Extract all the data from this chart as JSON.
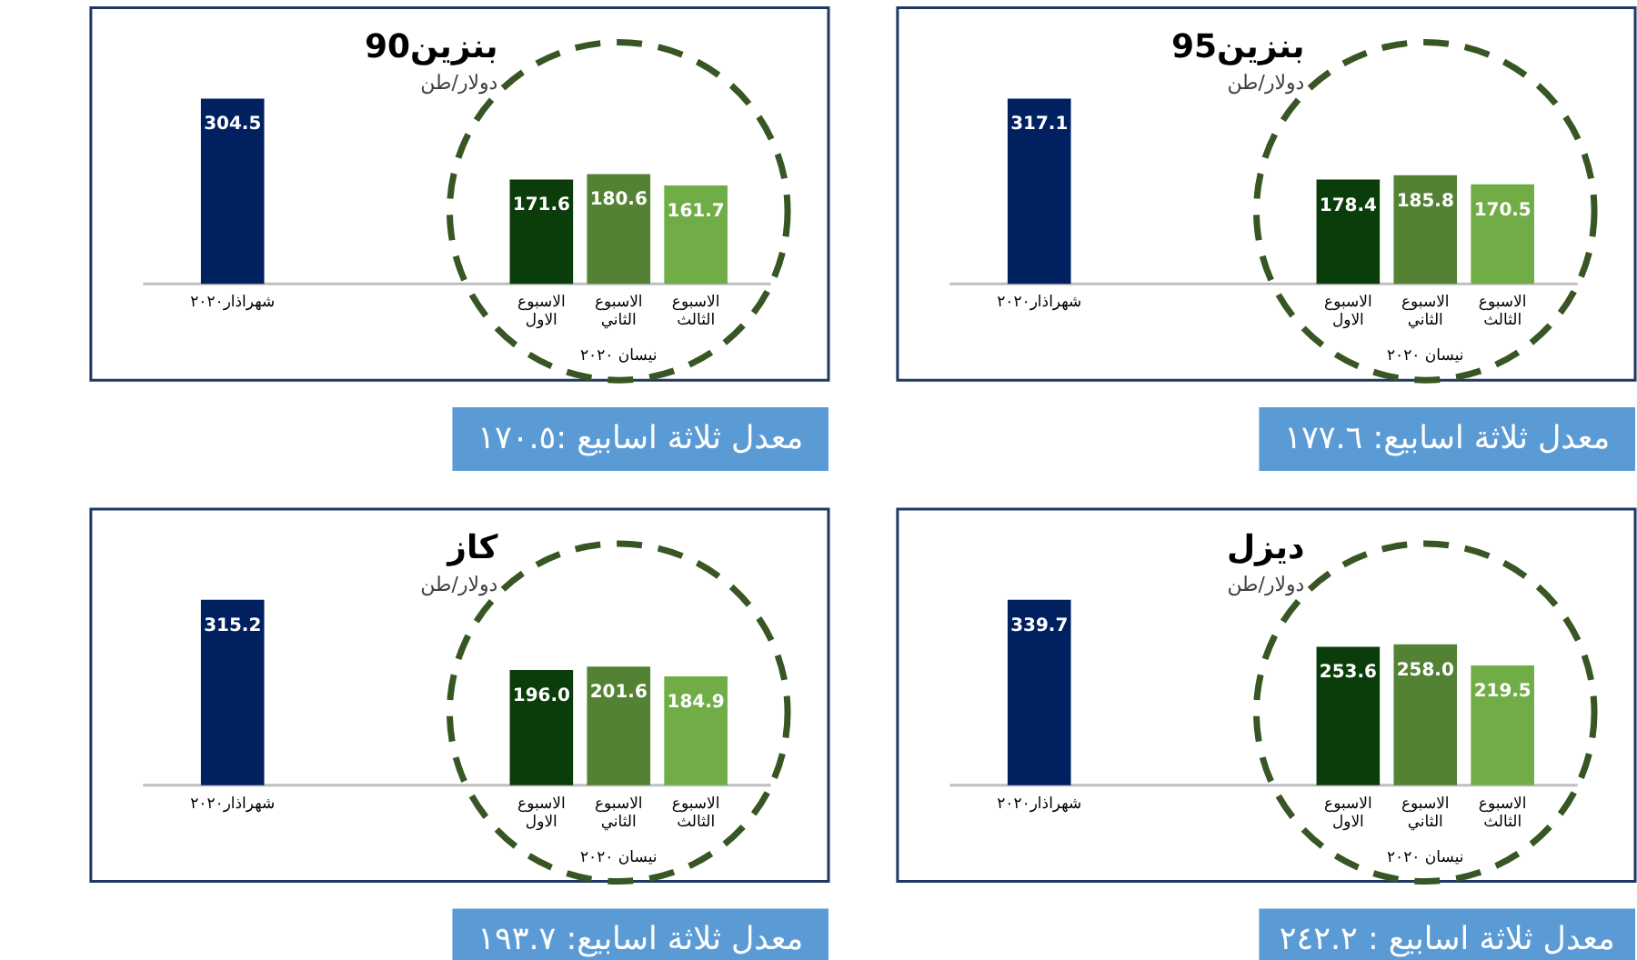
{
  "chart_data": [
    {
      "type": "bar",
      "title": "بنزين90",
      "subtitle": "دولار/طن",
      "categories": [
        "شهراذار٢٠٢٠",
        null,
        null,
        null,
        "الاسبوع الاول",
        "الاسبوع الثاني",
        "الاسبوع الثالث"
      ],
      "values": [
        304.5,
        null,
        null,
        null,
        171.6,
        180.6,
        161.7
      ],
      "colors": [
        "#002060",
        null,
        null,
        null,
        "#0b3d0b",
        "#548235",
        "#70ad47"
      ],
      "value_labels": [
        "304.5",
        null,
        null,
        null,
        "171.6",
        "180.6",
        "161.7"
      ],
      "annotations": [
        "نيسان ٢٠٢٠",
        "معدل ثلاثة اسابيع :١٧٠.٥"
      ]
    },
    {
      "type": "bar",
      "title": "بنزين95",
      "subtitle": "دولار/طن",
      "categories": [
        "شهراذار٢٠٢٠",
        null,
        null,
        null,
        "الاسبوع الاول",
        "الاسبوع الثاني",
        "الاسبوع الثالث"
      ],
      "values": [
        317.1,
        null,
        null,
        null,
        178.4,
        185.8,
        170.5
      ],
      "colors": [
        "#002060",
        null,
        null,
        null,
        "#0b3d0b",
        "#548235",
        "#70ad47"
      ],
      "value_labels": [
        "317.1",
        null,
        null,
        null,
        "178.4",
        "185.8",
        "170.5"
      ],
      "annotations": [
        "نيسان ٢٠٢٠",
        "معدل ثلاثة اسابيع: ١٧٧.٦"
      ]
    },
    {
      "type": "bar",
      "title": "كاز",
      "subtitle": "دولار/طن",
      "categories": [
        "شهراذار٢٠٢٠",
        null,
        null,
        null,
        "الاسبوع الاول",
        "الاسبوع الثاني",
        "الاسبوع الثالث"
      ],
      "values": [
        315.2,
        null,
        null,
        null,
        196.0,
        201.6,
        184.9
      ],
      "colors": [
        "#002060",
        null,
        null,
        null,
        "#0b3d0b",
        "#548235",
        "#70ad47"
      ],
      "value_labels": [
        "315.2",
        null,
        null,
        null,
        "196.0",
        "201.6",
        "184.9"
      ],
      "annotations": [
        "نيسان ٢٠٢٠",
        "معدل ثلاثة اسابيع: ١٩٣.٧"
      ]
    },
    {
      "type": "bar",
      "title": "ديزل",
      "subtitle": "دولار/طن",
      "categories": [
        "شهراذار٢٠٢٠",
        null,
        null,
        null,
        "الاسبوع الاول",
        "الاسبوع الثاني",
        "الاسبوع الثالث"
      ],
      "values": [
        339.7,
        null,
        null,
        null,
        253.6,
        258.0,
        219.5
      ],
      "colors": [
        "#002060",
        null,
        null,
        null,
        "#0b3d0b",
        "#548235",
        "#70ad47"
      ],
      "value_labels": [
        "339.7",
        null,
        null,
        null,
        "253.6",
        "258.0",
        "219.5"
      ],
      "annotations": [
        "نيسان ٢٠٢٠",
        "معدل ثلاثة اسابيع : ٢٤٢.٢"
      ]
    }
  ]
}
